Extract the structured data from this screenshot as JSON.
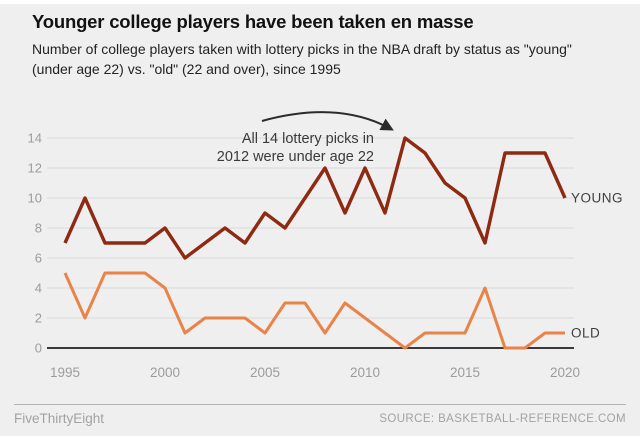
{
  "header": {
    "title": "Younger college players have been taken en masse",
    "subtitle": "Number of college players taken with lottery picks in the NBA draft by status as \"young\" (under age 22) vs. \"old\" (22 and over), since 1995"
  },
  "chart_data": {
    "type": "line",
    "x": [
      1995,
      1996,
      1997,
      1998,
      1999,
      2000,
      2001,
      2002,
      2003,
      2004,
      2005,
      2006,
      2007,
      2008,
      2009,
      2010,
      2011,
      2012,
      2013,
      2014,
      2015,
      2016,
      2017,
      2018,
      2019,
      2020
    ],
    "series": [
      {
        "name": "YOUNG",
        "color": "#8f2a12",
        "width": 3.4,
        "values": [
          7,
          10,
          7,
          7,
          7,
          8,
          6,
          7,
          8,
          7,
          9,
          8,
          10,
          12,
          9,
          12,
          9,
          14,
          13,
          11,
          10,
          7,
          13,
          13,
          13,
          10
        ]
      },
      {
        "name": "OLD",
        "color": "#ea8348",
        "width": 3,
        "values": [
          5,
          2,
          5,
          5,
          5,
          4,
          1,
          2,
          2,
          2,
          1,
          3,
          3,
          1,
          3,
          2,
          1,
          0,
          1,
          1,
          1,
          4,
          0,
          0,
          1,
          1
        ]
      }
    ],
    "ylim": [
      0,
      14
    ],
    "yticks": [
      0,
      2,
      4,
      6,
      8,
      10,
      12,
      14
    ],
    "xticks": [
      1995,
      2000,
      2005,
      2010,
      2015,
      2020
    ],
    "grid": "horizontal",
    "legend_position": "line-end-labels",
    "annotation": {
      "lines": [
        "All 14 lottery picks in",
        "2012 were under age 22"
      ],
      "points_to": {
        "year": 2012,
        "value": 14
      }
    },
    "tick_color": "#9c9c9c",
    "axis_color": "#1f1f1f",
    "grid_color": "#d9d9d9",
    "label_color": "#3f3f3f",
    "annotation_color": "#3a3a3a"
  },
  "footer": {
    "brand": "FiveThirtyEight",
    "source": "SOURCE: BASKETBALL-REFERENCE.COM"
  }
}
